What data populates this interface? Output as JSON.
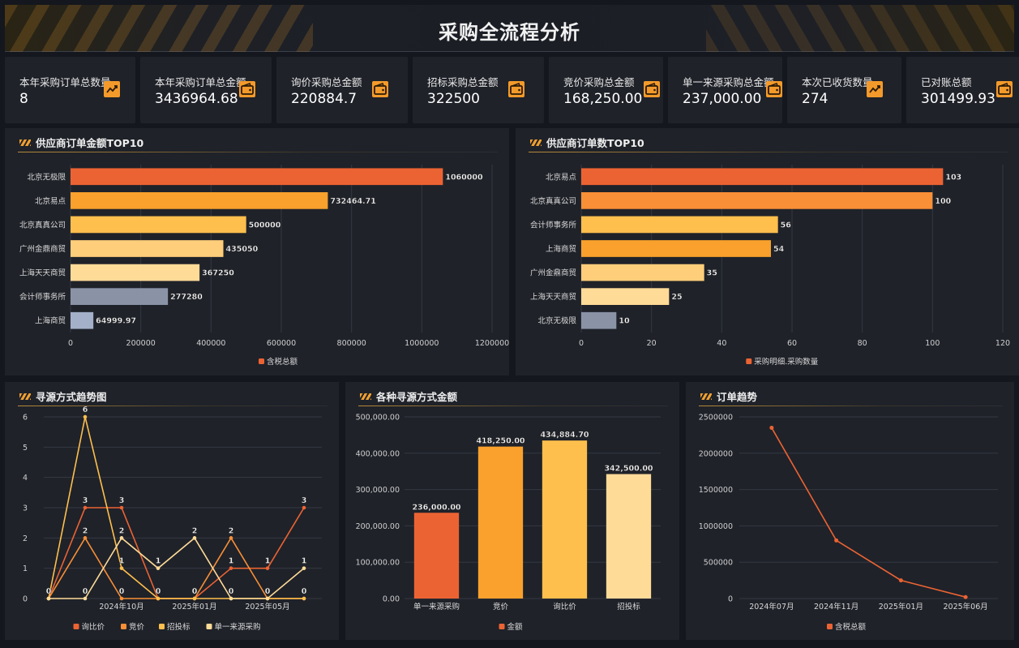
{
  "page": {
    "title": "采购全流程分析"
  },
  "kpis": [
    {
      "label": "本年采购订单总数量",
      "value": "8",
      "icon": "trend-icon"
    },
    {
      "label": "本年采购订单总金额",
      "value": "3436964.68",
      "icon": "wallet-icon"
    },
    {
      "label": "询价采购总金额",
      "value": "220884.7",
      "icon": "wallet-icon"
    },
    {
      "label": "招标采购总金额",
      "value": "322500",
      "icon": "wallet-icon"
    },
    {
      "label": "竞价采购总金额",
      "value": "168,250.00",
      "icon": "wallet-icon"
    },
    {
      "label": "单一来源采购总金额",
      "value": "237,000.00",
      "icon": "wallet-icon"
    },
    {
      "label": "本次已收货数量",
      "value": "274",
      "icon": "trend-icon"
    },
    {
      "label": "已对账总额",
      "value": "301499.93",
      "icon": "wallet-icon"
    }
  ],
  "colors": {
    "accent": "#f39a2b",
    "orange": "#ec6333",
    "amber": "#f9a12c",
    "gold": "#ffbf4d",
    "light": "#ffdb98",
    "grey": "#8a93a6",
    "bluegrey": "#a4b0c8"
  },
  "chart_data": [
    {
      "id": "supplier-amount",
      "type": "bar",
      "orientation": "horizontal",
      "title": "供应商订单金额TOP10",
      "categories": [
        "北京无极限",
        "北京易点",
        "北京真真公司",
        "广州金鼎商贸",
        "上海天天商贸",
        "会计师事务所",
        "上海商贸"
      ],
      "series": [
        {
          "name": "含税总额",
          "values": [
            1060000,
            732464.71,
            500000,
            435050,
            367250,
            277280,
            64999.97
          ]
        }
      ],
      "value_labels": [
        "1060000",
        "732464.71",
        "500000",
        "435050",
        "367250",
        "277280",
        "64999.97"
      ],
      "bar_colors": [
        "#ec6333",
        "#f9a12c",
        "#ffbf4d",
        "#ffce7a",
        "#ffdb98",
        "#8a93a6",
        "#a4b0c8"
      ],
      "xlim": [
        0,
        1200000
      ],
      "xticks": [
        0,
        200000,
        400000,
        600000,
        800000,
        1000000,
        1200000
      ],
      "grid": true,
      "legend": "bottom"
    },
    {
      "id": "supplier-count",
      "type": "bar",
      "orientation": "horizontal",
      "title": "供应商订单数TOP10",
      "categories": [
        "北京易点",
        "北京真真公司",
        "会计师事务所",
        "上海商贸",
        "广州金鼎商贸",
        "上海天天商贸",
        "北京无极限"
      ],
      "series": [
        {
          "name": "采购明细.采购数量",
          "values": [
            103,
            100,
            56,
            54,
            35,
            25,
            10
          ]
        }
      ],
      "value_labels": [
        "103",
        "100",
        "56",
        "54",
        "35",
        "25",
        "10"
      ],
      "bar_colors": [
        "#ec6333",
        "#f98f36",
        "#ffbf4d",
        "#f9a12c",
        "#ffce7a",
        "#ffdb98",
        "#8a93a6"
      ],
      "xlim": [
        0,
        120
      ],
      "xticks": [
        0,
        20,
        40,
        60,
        80,
        100,
        120
      ],
      "grid": true,
      "legend": "bottom"
    },
    {
      "id": "sourcing-trend",
      "type": "line",
      "title": "寻源方式趋势图",
      "x_count": 8,
      "x_tick_labels": [
        {
          "index": 2,
          "label": "2024年10月"
        },
        {
          "index": 4,
          "label": "2025年01月"
        },
        {
          "index": 6,
          "label": "2025年05月"
        }
      ],
      "series": [
        {
          "name": "询比价",
          "values": [
            0,
            3,
            3,
            0,
            0,
            1,
            1,
            3
          ],
          "color": "#ec6333"
        },
        {
          "name": "竞价",
          "values": [
            0,
            2,
            0,
            0,
            0,
            2,
            0,
            0
          ],
          "color": "#f98f36"
        },
        {
          "name": "招投标",
          "values": [
            0,
            6,
            1,
            0,
            0,
            0,
            0,
            0
          ],
          "color": "#ffbf4d"
        },
        {
          "name": "单一来源采购",
          "values": [
            0,
            0,
            2,
            1,
            2,
            0,
            0,
            1
          ],
          "color": "#ffdb98"
        }
      ],
      "ylim": [
        0,
        6
      ],
      "yticks": [
        0,
        1,
        2,
        3,
        4,
        5,
        6
      ],
      "grid": true,
      "legend": "bottom"
    },
    {
      "id": "sourcing-amount",
      "type": "bar",
      "title": "各种寻源方式金额",
      "categories": [
        "单一来源采购",
        "竞价",
        "询比价",
        "招投标"
      ],
      "series": [
        {
          "name": "金额",
          "values": [
            236000,
            418250,
            434884.7,
            342500
          ]
        }
      ],
      "value_labels": [
        "236,000.00",
        "418,250.00",
        "434,884.70",
        "342,500.00"
      ],
      "bar_colors": [
        "#ec6333",
        "#f9a12c",
        "#ffbf4d",
        "#ffdb98"
      ],
      "ylim": [
        0,
        500000
      ],
      "yticks": [
        0,
        100000,
        200000,
        300000,
        400000,
        500000
      ],
      "ytick_labels": [
        "0.00",
        "100,000.00",
        "200,000.00",
        "300,000.00",
        "400,000.00",
        "500,000.00"
      ],
      "grid": true,
      "legend": "bottom"
    },
    {
      "id": "order-trend",
      "type": "line",
      "title": "订单趋势",
      "categories": [
        "2024年07月",
        "2024年11月",
        "2025年01月",
        "2025年06月"
      ],
      "series": [
        {
          "name": "含税总额",
          "values": [
            2350000,
            800000,
            250000,
            20000
          ],
          "color": "#ec6333"
        }
      ],
      "ylim": [
        0,
        2500000
      ],
      "yticks": [
        0,
        500000,
        1000000,
        1500000,
        2000000,
        2500000
      ],
      "grid": true,
      "legend": "bottom"
    }
  ]
}
